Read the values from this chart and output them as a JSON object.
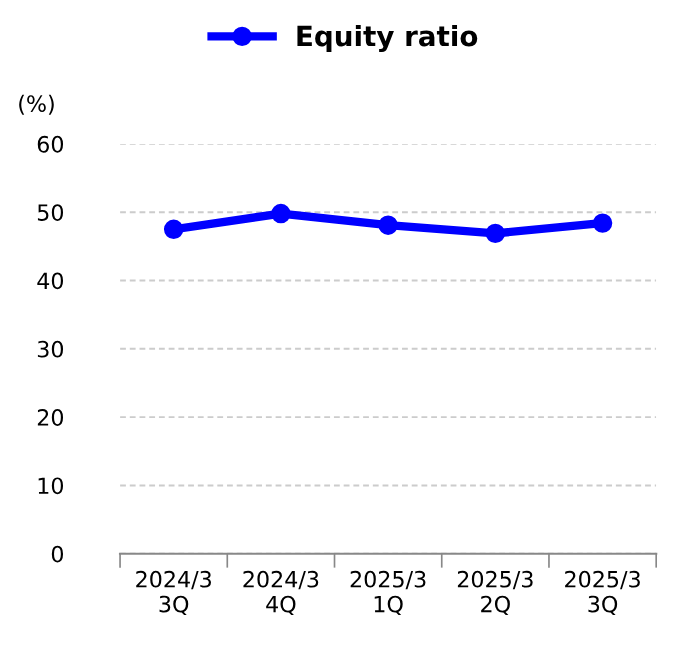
{
  "chart_data": {
    "type": "line",
    "ylabel": "(%)",
    "categories": [
      "2024/3\n3Q",
      "2024/3\n4Q",
      "2025/3\n1Q",
      "2025/3\n2Q",
      "2025/3\n3Q"
    ],
    "series": [
      {
        "name": "Equity ratio",
        "color": "#0000ff",
        "values": [
          47.5,
          49.8,
          48.1,
          46.9,
          48.4
        ]
      }
    ],
    "ylim": [
      0,
      60
    ],
    "yticks": [
      0,
      10,
      20,
      30,
      40,
      50,
      60
    ],
    "grid": "y",
    "legend": "top",
    "marker": "circle",
    "line_style": "solid"
  }
}
